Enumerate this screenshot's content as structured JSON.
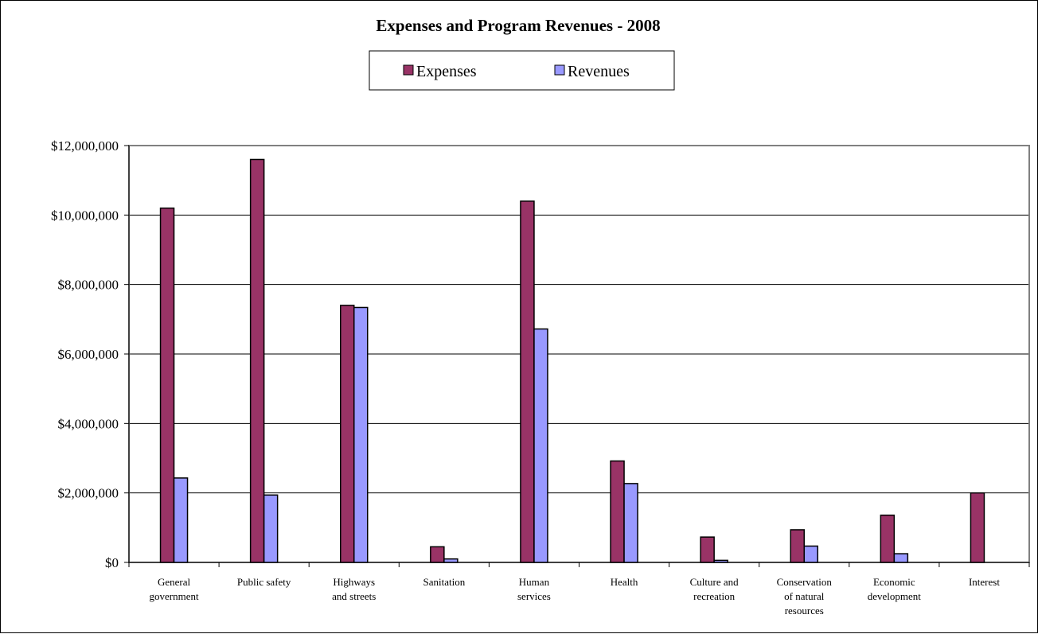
{
  "chart_data": {
    "type": "bar",
    "title": "Expenses and Program Revenues - 2008",
    "xlabel": "",
    "ylabel": "",
    "categories": [
      [
        "General",
        "government"
      ],
      [
        "Public safety"
      ],
      [
        "Highways",
        "and streets"
      ],
      [
        "Sanitation"
      ],
      [
        "Human",
        "services"
      ],
      [
        "Health"
      ],
      [
        "Culture and",
        "recreation"
      ],
      [
        "Conservation",
        "of natural",
        "resources"
      ],
      [
        "Economic",
        "development"
      ],
      [
        "Interest"
      ]
    ],
    "series": [
      {
        "name": "Expenses",
        "color": "#993366",
        "values": [
          10200000,
          11600000,
          7400000,
          450000,
          10400000,
          2920000,
          730000,
          940000,
          1360000,
          2000000
        ]
      },
      {
        "name": "Revenues",
        "color": "#9999ff",
        "values": [
          2430000,
          1940000,
          7340000,
          100000,
          6720000,
          2270000,
          60000,
          470000,
          250000,
          0
        ]
      }
    ],
    "ylim": [
      0,
      12000000
    ],
    "yticks": [
      0,
      2000000,
      4000000,
      6000000,
      8000000,
      10000000,
      12000000
    ],
    "ytick_labels": [
      "$0",
      "$2,000,000",
      "$4,000,000",
      "$6,000,000",
      "$8,000,000",
      "$10,000,000",
      "$12,000,000"
    ],
    "grid": true,
    "legend_position": "top-center",
    "plot_background": "#ffffff",
    "gridline_color": "#000000",
    "plot_border_color": "#808080"
  }
}
